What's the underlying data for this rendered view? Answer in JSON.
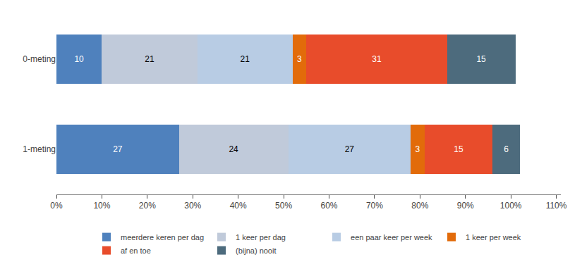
{
  "chart_data": {
    "type": "bar",
    "orientation": "horizontal",
    "stacked": true,
    "data_labels": true,
    "grid": false,
    "legend": "bottom",
    "categories": [
      "0-meting",
      "1-meting"
    ],
    "series": [
      {
        "name": "meerdere keren per dag",
        "color": "#4F81BD",
        "values": [
          10,
          27
        ]
      },
      {
        "name": "1 keer per dag",
        "color": "#C0CADA",
        "values": [
          21,
          24
        ]
      },
      {
        "name": "een paar keer per week",
        "color": "#B8CCE4",
        "values": [
          21,
          27
        ]
      },
      {
        "name": "1 keer per week",
        "color": "#E26B0A",
        "values": [
          3,
          3
        ]
      },
      {
        "name": "af en toe",
        "color": "#E84C2B",
        "values": [
          31,
          15
        ]
      },
      {
        "name": "(bijna) nooit",
        "color": "#4D6B7D",
        "values": [
          15,
          6
        ]
      }
    ],
    "xlim": [
      0,
      111
    ],
    "xticks": [
      {
        "value": 0,
        "label": "0%"
      },
      {
        "value": 10,
        "label": "10%"
      },
      {
        "value": 20,
        "label": "20%"
      },
      {
        "value": 30,
        "label": "30%"
      },
      {
        "value": 40,
        "label": "40%"
      },
      {
        "value": 50,
        "label": "50%"
      },
      {
        "value": 60,
        "label": "60%"
      },
      {
        "value": 70,
        "label": "70%"
      },
      {
        "value": 80,
        "label": "80%"
      },
      {
        "value": 90,
        "label": "90%"
      },
      {
        "value": 100,
        "label": "100%"
      },
      {
        "value": 110,
        "label": "110%"
      }
    ]
  }
}
